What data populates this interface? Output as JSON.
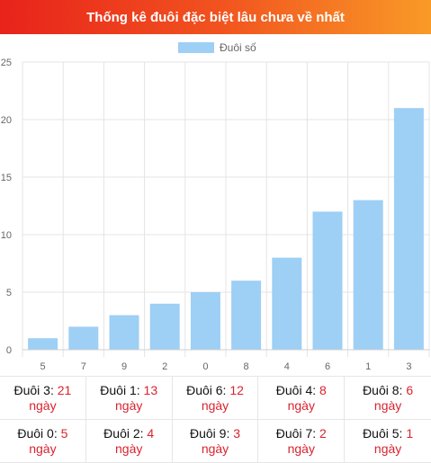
{
  "header": {
    "title": "Thống kê đuôi đặc biệt lâu chưa về nhất"
  },
  "chart_data": {
    "type": "bar",
    "title": "",
    "xlabel": "",
    "ylabel": "",
    "categories": [
      "5",
      "7",
      "9",
      "2",
      "0",
      "8",
      "4",
      "6",
      "1",
      "3"
    ],
    "series": [
      {
        "name": "Đuôi số",
        "values": [
          1,
          2,
          3,
          4,
          5,
          6,
          8,
          12,
          13,
          21
        ],
        "color": "#9ecff5"
      }
    ],
    "ylim": [
      0,
      25
    ],
    "yticks": [
      0,
      5,
      10,
      15,
      20,
      25
    ],
    "grid": true,
    "legend": "top-center"
  },
  "stats": [
    {
      "prefix": "Đuôi 3: ",
      "count": "21",
      "unit": "ngày"
    },
    {
      "prefix": "Đuôi 1: ",
      "count": "13",
      "unit": "ngày"
    },
    {
      "prefix": "Đuôi 6: ",
      "count": "12",
      "unit": "ngày"
    },
    {
      "prefix": "Đuôi 4: ",
      "count": "8",
      "unit": "ngày"
    },
    {
      "prefix": "Đuôi 8: ",
      "count": "6",
      "unit": "ngày"
    },
    {
      "prefix": "Đuôi 0: ",
      "count": "5",
      "unit": "ngày"
    },
    {
      "prefix": "Đuôi 2: ",
      "count": "4",
      "unit": "ngày"
    },
    {
      "prefix": "Đuôi 9: ",
      "count": "3",
      "unit": "ngày"
    },
    {
      "prefix": "Đuôi 7: ",
      "count": "2",
      "unit": "ngày"
    },
    {
      "prefix": "Đuôi 5: ",
      "count": "1",
      "unit": "ngày"
    }
  ]
}
